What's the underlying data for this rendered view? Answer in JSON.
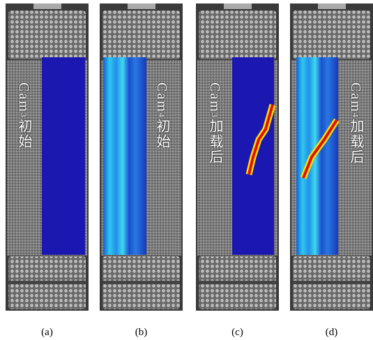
{
  "panels": [
    {
      "camera": "Cam",
      "sub": "3",
      "state": "初始",
      "label": "(a)"
    },
    {
      "camera": "Cam",
      "sub": "4",
      "state": "初始",
      "label": "(b)"
    },
    {
      "camera": "Cam",
      "sub": "3",
      "state": "加载后",
      "label": "(c)"
    },
    {
      "camera": "Cam",
      "sub": "4",
      "state": "加载后",
      "label": "(d)"
    }
  ]
}
